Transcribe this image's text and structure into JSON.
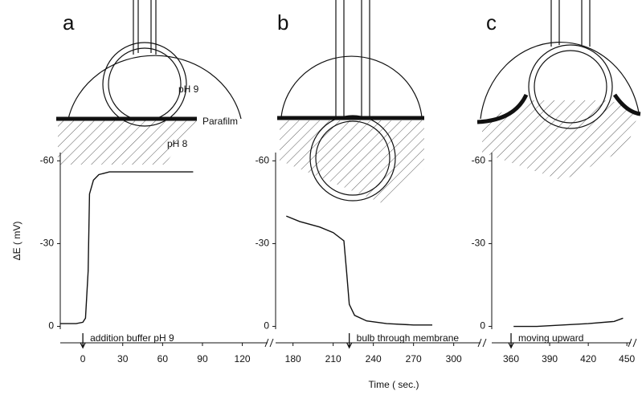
{
  "chart_data": [
    {
      "type": "line",
      "panel": "a",
      "ylabel": "ΔE ( mV)",
      "labels": [
        "pH 9",
        "Parafilm",
        "pH 8"
      ],
      "annotation": {
        "text": "addition buffer pH 9",
        "x": 0
      },
      "x": [
        -17,
        -5,
        0,
        2,
        4,
        5,
        8,
        12,
        20,
        40,
        60,
        83
      ],
      "values": [
        -1,
        -1,
        -1.5,
        -3,
        -20,
        -48,
        -53,
        -55,
        -56,
        -56,
        -56,
        -56
      ],
      "xlim": [
        -17,
        139
      ],
      "xticks": [
        0,
        30,
        60,
        90,
        120
      ],
      "ylim": [
        1,
        -63
      ],
      "yticks": [
        -60,
        -30,
        0
      ]
    },
    {
      "type": "line",
      "panel": "b",
      "xlabel": "Time ( sec.)",
      "annotation": {
        "text": "bulb through membrane",
        "x": 222
      },
      "x": [
        175,
        185,
        200,
        210,
        218,
        220,
        222,
        226,
        235,
        250,
        270,
        284
      ],
      "values": [
        -40,
        -38,
        -36,
        -34,
        -31,
        -20,
        -8,
        -4,
        -2,
        -1,
        -0.5,
        -0.5
      ],
      "xlim": [
        167,
        320
      ],
      "xticks": [
        180,
        210,
        240,
        270,
        300
      ],
      "ylim": [
        1,
        -63
      ],
      "yticks": [
        -60,
        -30,
        0
      ]
    },
    {
      "type": "line",
      "panel": "c",
      "annotation": {
        "text": "moving upward",
        "x": 360
      },
      "x": [
        362,
        380,
        400,
        420,
        440,
        447
      ],
      "values": [
        0,
        0,
        -0.5,
        -1,
        -1.8,
        -3
      ],
      "xlim": [
        345,
        453
      ],
      "xticks": [
        360,
        390,
        420,
        450
      ],
      "ylim": [
        1,
        -63
      ],
      "yticks": [
        -60,
        -30,
        0
      ]
    }
  ]
}
